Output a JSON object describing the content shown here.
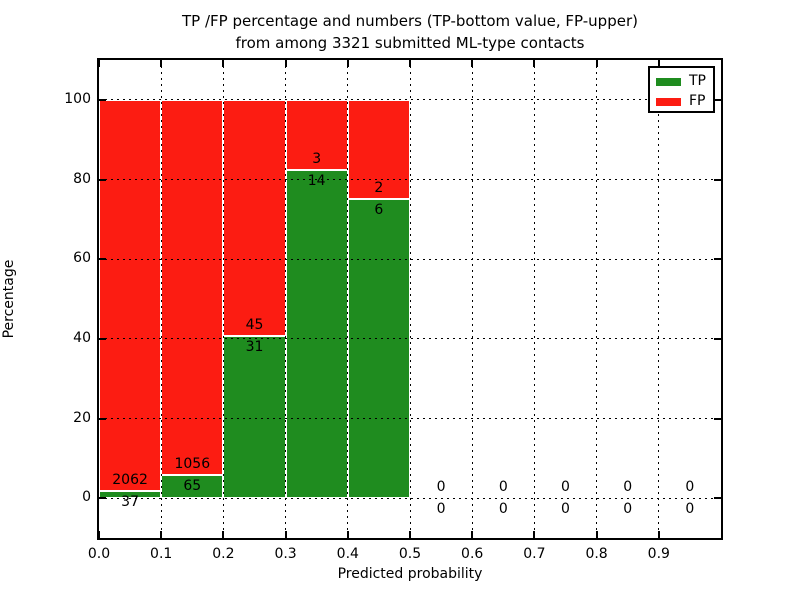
{
  "chart_data": {
    "type": "bar",
    "stacked": true,
    "title_line1": "TP /FP percentage and numbers (TP-bottom value, FP-upper)",
    "title_line2": "from among 3321 submitted ML-type contacts",
    "total_contacts": 3321,
    "xlabel": "Predicted probability",
    "ylabel": "Percentage",
    "xlim": [
      0.0,
      1.0
    ],
    "ylim": [
      -10,
      110
    ],
    "grid": true,
    "grid_style": "dotted",
    "legend": {
      "position": "upper-right",
      "entries": [
        {
          "label": "TP",
          "color": "#1f8c1f"
        },
        {
          "label": "FP",
          "color": "#fc1c12"
        }
      ]
    },
    "colors": {
      "tp": "#1f8c1f",
      "fp": "#fc1c12",
      "bar_edge": "#ffffff",
      "grid": "#000000",
      "text": "#000000"
    },
    "xticks": [
      {
        "v": 0.0,
        "label": "0.0"
      },
      {
        "v": 0.1,
        "label": "0.1"
      },
      {
        "v": 0.2,
        "label": "0.2"
      },
      {
        "v": 0.3,
        "label": "0.3"
      },
      {
        "v": 0.4,
        "label": "0.4"
      },
      {
        "v": 0.5,
        "label": "0.5"
      },
      {
        "v": 0.6,
        "label": "0.6"
      },
      {
        "v": 0.7,
        "label": "0.7"
      },
      {
        "v": 0.8,
        "label": "0.8"
      },
      {
        "v": 0.9,
        "label": "0.9"
      }
    ],
    "yticks": [
      {
        "v": 0,
        "label": "0"
      },
      {
        "v": 20,
        "label": "20"
      },
      {
        "v": 40,
        "label": "40"
      },
      {
        "v": 60,
        "label": "60"
      },
      {
        "v": 80,
        "label": "80"
      },
      {
        "v": 100,
        "label": "100"
      }
    ],
    "bars": [
      {
        "x_start": 0.0,
        "x_end": 0.1,
        "tp_count": 37,
        "fp_count": 2062,
        "tp_pct": 1.76,
        "fp_pct": 98.24
      },
      {
        "x_start": 0.1,
        "x_end": 0.2,
        "tp_count": 65,
        "fp_count": 1056,
        "tp_pct": 5.8,
        "fp_pct": 94.2
      },
      {
        "x_start": 0.2,
        "x_end": 0.3,
        "tp_count": 31,
        "fp_count": 45,
        "tp_pct": 40.79,
        "fp_pct": 59.21
      },
      {
        "x_start": 0.3,
        "x_end": 0.4,
        "tp_count": 14,
        "fp_count": 3,
        "tp_pct": 82.35,
        "fp_pct": 17.65
      },
      {
        "x_start": 0.4,
        "x_end": 0.5,
        "tp_count": 6,
        "fp_count": 2,
        "tp_pct": 75.0,
        "fp_pct": 25.0
      },
      {
        "x_start": 0.5,
        "x_end": 0.6,
        "tp_count": 0,
        "fp_count": 0,
        "tp_pct": 0,
        "fp_pct": 0
      },
      {
        "x_start": 0.6,
        "x_end": 0.7,
        "tp_count": 0,
        "fp_count": 0,
        "tp_pct": 0,
        "fp_pct": 0
      },
      {
        "x_start": 0.7,
        "x_end": 0.8,
        "tp_count": 0,
        "fp_count": 0,
        "tp_pct": 0,
        "fp_pct": 0
      },
      {
        "x_start": 0.8,
        "x_end": 0.9,
        "tp_count": 0,
        "fp_count": 0,
        "tp_pct": 0,
        "fp_pct": 0
      },
      {
        "x_start": 0.9,
        "x_end": 1.0,
        "tp_count": 0,
        "fp_count": 0,
        "tp_pct": 0,
        "fp_pct": 0
      }
    ]
  }
}
